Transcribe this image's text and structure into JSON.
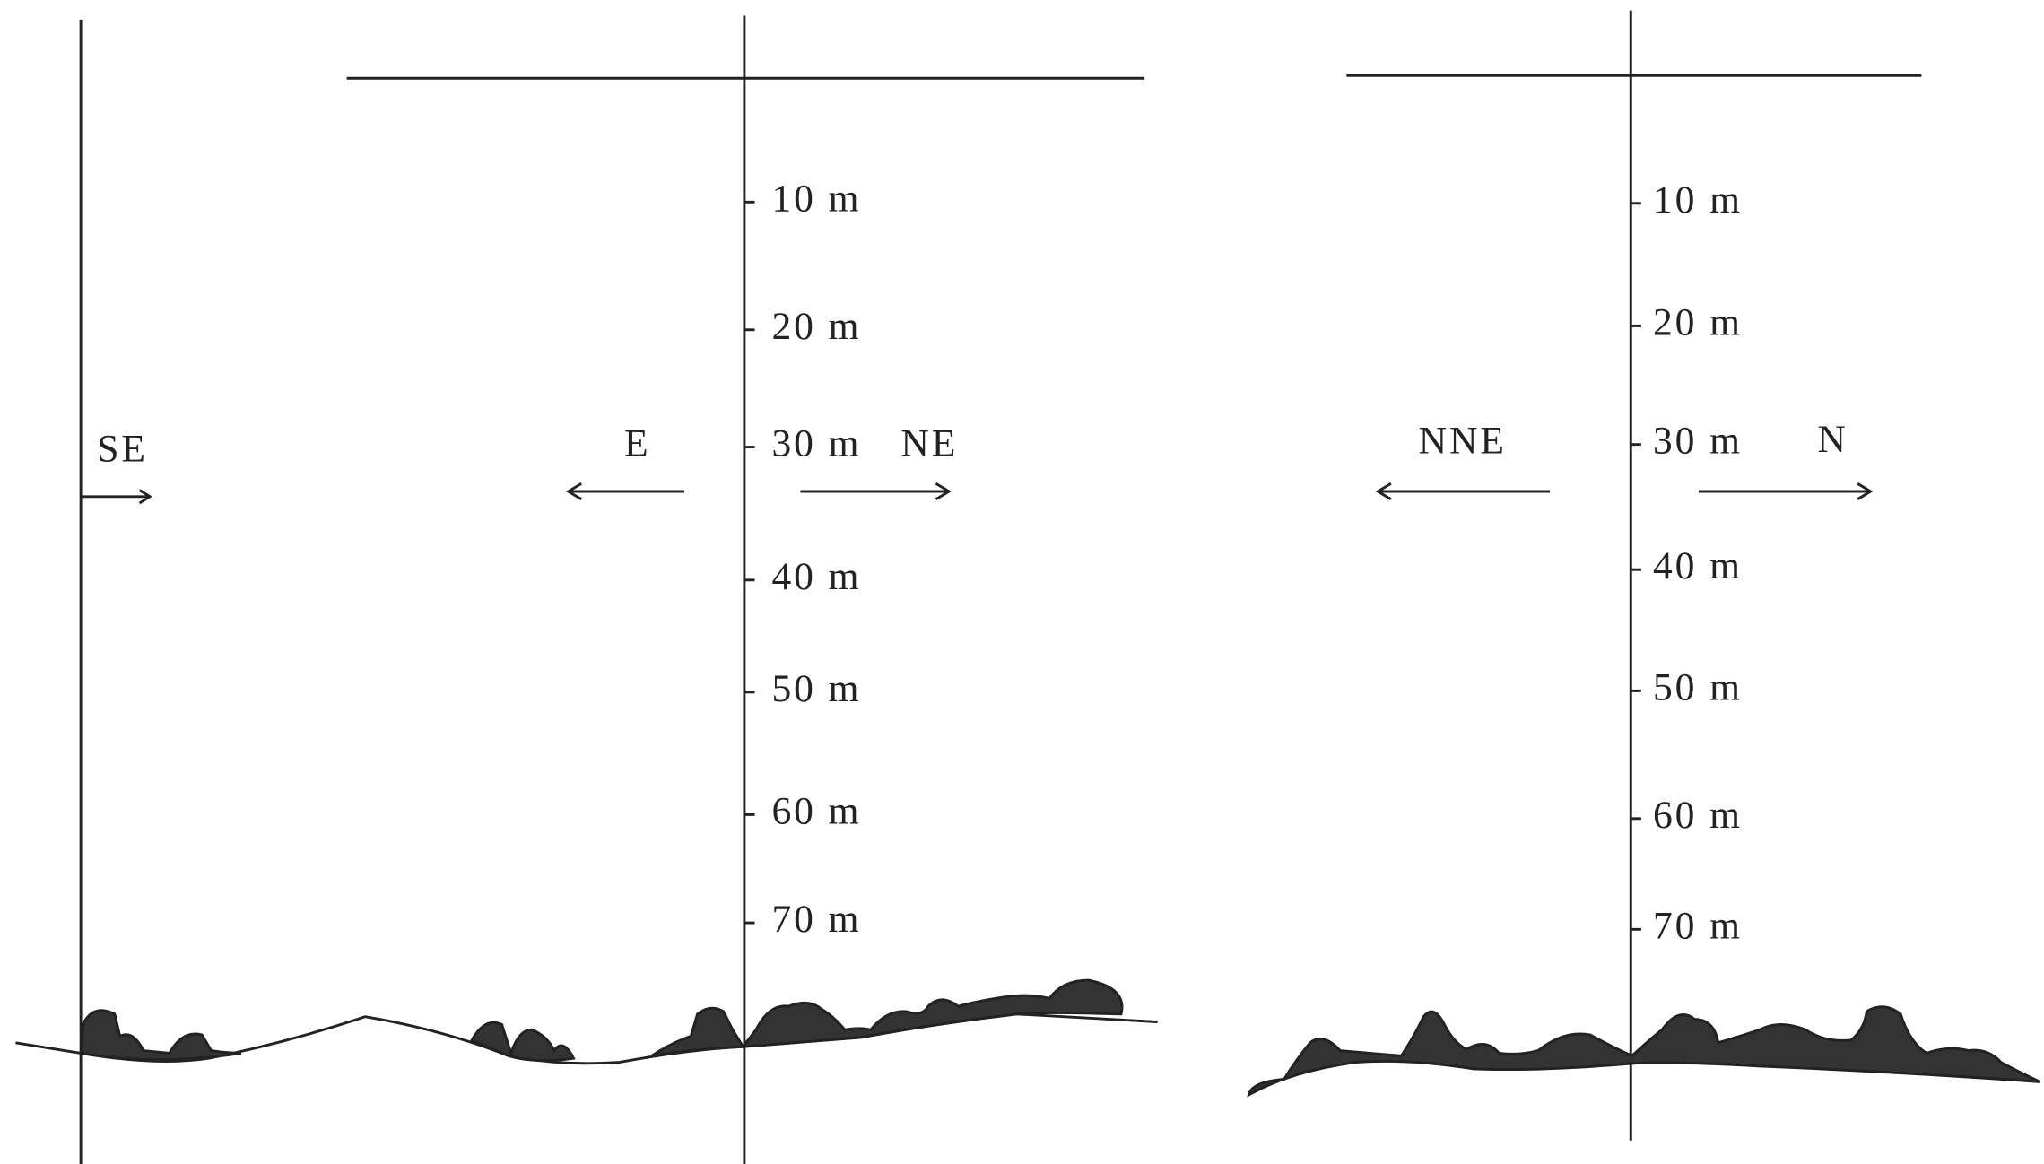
{
  "left_panel": {
    "scale_labels": [
      "10 m",
      "20 m",
      "30 m",
      "40 m",
      "50 m",
      "60 m",
      "70 m"
    ],
    "directions": [
      "SE",
      "E",
      "NE"
    ]
  },
  "right_panel": {
    "scale_labels": [
      "10 m",
      "20 m",
      "30 m",
      "40 m",
      "50 m",
      "60 m",
      "70 m"
    ],
    "directions": [
      "NNE",
      "N"
    ]
  }
}
